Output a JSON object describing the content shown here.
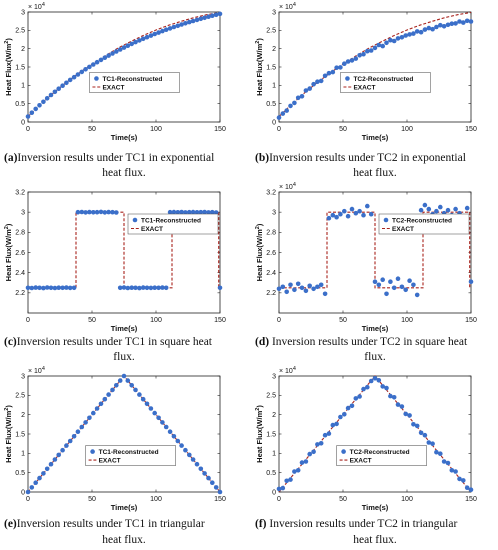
{
  "multiplier": {
    "base": "× 10",
    "exp": "4"
  },
  "chart_data": [
    {
      "id": "a",
      "type": "scatter+line",
      "xlabel": "Time(s)",
      "ylabel": "Heat Flux(W/m",
      "ylabel_sup": "2",
      "ylabel_end": ")",
      "xlim": [
        0,
        150
      ],
      "ylim": [
        0,
        30000
      ],
      "xticks": [
        "0",
        "50",
        "100",
        "150"
      ],
      "yticks": [
        "0",
        "0.5",
        "1",
        "1.5",
        "2",
        "2.5",
        "3"
      ],
      "ytick_values": [
        0,
        5000,
        10000,
        15000,
        20000,
        25000,
        30000
      ],
      "multiplier": true,
      "legend_loc": "center",
      "series": [
        {
          "name": "TC1-Reconstructed",
          "kind": "points",
          "x": [
            0,
            3,
            6,
            9,
            12,
            15,
            18,
            21,
            24,
            27,
            30,
            33,
            36,
            39,
            42,
            45,
            48,
            51,
            54,
            57,
            60,
            63,
            66,
            69,
            72,
            75,
            78,
            81,
            84,
            87,
            90,
            93,
            96,
            99,
            102,
            105,
            108,
            111,
            114,
            117,
            120,
            123,
            126,
            129,
            132,
            135,
            138,
            141,
            144,
            147,
            150
          ],
          "y": [
            1500,
            2550,
            3570,
            4560,
            5520,
            6450,
            7350,
            8230,
            9080,
            9900,
            10700,
            11470,
            12230,
            12960,
            13670,
            14360,
            15030,
            15690,
            16320,
            16940,
            17540,
            18120,
            18690,
            19240,
            19780,
            20300,
            20810,
            21300,
            21780,
            22250,
            22700,
            23140,
            23570,
            23990,
            24390,
            24790,
            25170,
            25540,
            25900,
            26250,
            26590,
            26920,
            27240,
            27550,
            27850,
            28150,
            28430,
            28710,
            28980,
            29240,
            29490
          ]
        },
        {
          "name": "EXACT",
          "kind": "dashed",
          "x": [
            0,
            10,
            20,
            30,
            40,
            50,
            60,
            70,
            80,
            90,
            100,
            110,
            120,
            130,
            140,
            150
          ],
          "y": [
            1500,
            4850,
            7950,
            10800,
            13400,
            15800,
            18000,
            20100,
            21900,
            23600,
            25100,
            26400,
            27500,
            28500,
            29300,
            29900
          ]
        }
      ]
    },
    {
      "id": "b",
      "type": "scatter+line",
      "xlabel": "Time(s)",
      "ylabel": "Heat Flux(W/m",
      "ylabel_sup": "2",
      "ylabel_end": ")",
      "xlim": [
        0,
        150
      ],
      "ylim": [
        0,
        30000
      ],
      "xticks": [
        "0",
        "50",
        "100",
        "150"
      ],
      "yticks": [
        "0",
        "0.5",
        "1",
        "1.5",
        "2",
        "2.5",
        "3"
      ],
      "ytick_values": [
        0,
        5000,
        10000,
        15000,
        20000,
        25000,
        30000
      ],
      "multiplier": true,
      "legend_loc": "center",
      "series": [
        {
          "name": "TC2-Reconstructed",
          "kind": "points",
          "x": [
            0,
            3,
            6,
            9,
            12,
            15,
            18,
            21,
            24,
            27,
            30,
            33,
            36,
            39,
            42,
            45,
            48,
            51,
            54,
            57,
            60,
            63,
            66,
            69,
            72,
            75,
            78,
            81,
            84,
            87,
            90,
            93,
            96,
            99,
            102,
            105,
            108,
            111,
            114,
            117,
            120,
            123,
            126,
            129,
            132,
            135,
            138,
            141,
            144,
            147,
            150
          ],
          "y": [
            1200,
            2300,
            3100,
            4400,
            5200,
            6600,
            7000,
            8600,
            9100,
            10300,
            11000,
            11200,
            12600,
            13300,
            13600,
            14800,
            14900,
            15900,
            16500,
            16800,
            17300,
            18200,
            18500,
            19300,
            19500,
            20200,
            21000,
            20700,
            21600,
            22300,
            22100,
            22800,
            23100,
            23600,
            23900,
            24100,
            24700,
            24500,
            25200,
            25600,
            25300,
            25900,
            26400,
            26100,
            26500,
            26800,
            26900,
            27400,
            27100,
            27600,
            27400
          ]
        },
        {
          "name": "EXACT",
          "kind": "dashed",
          "x": [
            0,
            10,
            20,
            30,
            40,
            50,
            60,
            70,
            80,
            90,
            100,
            110,
            120,
            130,
            140,
            150
          ],
          "y": [
            1500,
            4850,
            7950,
            10800,
            13400,
            15800,
            18000,
            20100,
            21900,
            23600,
            25100,
            26400,
            27500,
            28500,
            29300,
            29900
          ]
        }
      ]
    },
    {
      "id": "c",
      "type": "scatter+line",
      "xlabel": "Time(s)",
      "ylabel": "Heat Flux(W/m",
      "ylabel_sup": "2",
      "ylabel_end": ")",
      "xlim": [
        0,
        150
      ],
      "ylim": [
        20000,
        32000
      ],
      "xticks": [
        "0",
        "50",
        "100",
        "150"
      ],
      "yticks": [
        "2.2",
        "2.4",
        "2.6",
        "2.8",
        "3",
        "3.2"
      ],
      "ytick_values": [
        22000,
        24000,
        26000,
        28000,
        30000,
        32000
      ],
      "multiplier": false,
      "legend_loc": "top-right",
      "series": [
        {
          "name": "TC1-Reconstructed",
          "kind": "points",
          "x": [
            0,
            3,
            6,
            9,
            12,
            15,
            18,
            21,
            24,
            27,
            30,
            33,
            36,
            39,
            42,
            45,
            48,
            51,
            54,
            57,
            60,
            63,
            66,
            69,
            72,
            75,
            78,
            81,
            84,
            87,
            90,
            93,
            96,
            99,
            102,
            105,
            108,
            111,
            114,
            117,
            120,
            123,
            126,
            129,
            132,
            135,
            138,
            141,
            144,
            147,
            150
          ],
          "y": [
            22500,
            22480,
            22520,
            22500,
            22470,
            22530,
            22500,
            22480,
            22510,
            22500,
            22520,
            22490,
            22500,
            30000,
            30020,
            29980,
            30010,
            29990,
            30000,
            30030,
            29980,
            30010,
            30000,
            29970,
            22500,
            22530,
            22480,
            22510,
            22500,
            22470,
            22520,
            22500,
            22490,
            22510,
            22500,
            22520,
            22500,
            30000,
            30010,
            29990,
            30020,
            29980,
            30000,
            30010,
            29990,
            30000,
            30020,
            29980,
            30000,
            29970,
            22500
          ]
        },
        {
          "name": "EXACT",
          "kind": "dashed",
          "x": [
            0,
            37.5,
            37.5,
            75,
            75,
            112.5,
            112.5,
            149,
            149
          ],
          "y": [
            22500,
            22500,
            30000,
            30000,
            22500,
            22500,
            30000,
            30000,
            22500
          ]
        }
      ]
    },
    {
      "id": "d",
      "type": "scatter+line",
      "xlabel": "Time(s)",
      "ylabel": "Heat Flux(W/m",
      "ylabel_sup": "2",
      "ylabel_end": ")",
      "xlim": [
        0,
        150
      ],
      "ylim": [
        20000,
        32000
      ],
      "xticks": [
        "0",
        "50",
        "100",
        "150"
      ],
      "yticks": [
        "2.2",
        "2.4",
        "2.6",
        "2.8",
        "3",
        "3.2"
      ],
      "ytick_values": [
        22000,
        24000,
        26000,
        28000,
        30000,
        32000
      ],
      "multiplier": true,
      "legend_loc": "top-right",
      "series": [
        {
          "name": "TC2-Reconstructed",
          "kind": "points",
          "x": [
            0,
            3,
            6,
            9,
            12,
            15,
            18,
            21,
            24,
            27,
            30,
            33,
            36,
            39,
            42,
            45,
            48,
            51,
            54,
            57,
            60,
            63,
            66,
            69,
            72,
            75,
            78,
            81,
            84,
            87,
            90,
            93,
            96,
            99,
            102,
            105,
            108,
            111,
            114,
            117,
            120,
            123,
            126,
            129,
            132,
            135,
            138,
            141,
            144,
            147,
            150
          ],
          "y": [
            22400,
            22600,
            22100,
            22800,
            22300,
            22900,
            22500,
            22200,
            22700,
            22400,
            22600,
            22800,
            21900,
            29400,
            29700,
            29500,
            29800,
            30100,
            29600,
            30300,
            29900,
            30100,
            29700,
            30600,
            29800,
            23100,
            22800,
            23300,
            21900,
            23100,
            22500,
            23400,
            22600,
            22300,
            23200,
            22800,
            21800,
            30200,
            30700,
            30300,
            29800,
            30100,
            30500,
            29900,
            30200,
            29700,
            30300,
            29900,
            29600,
            30400,
            23100
          ]
        },
        {
          "name": "EXACT",
          "kind": "dashed",
          "x": [
            0,
            37.5,
            37.5,
            75,
            75,
            112.5,
            112.5,
            149,
            149
          ],
          "y": [
            22500,
            22500,
            30000,
            30000,
            22500,
            22500,
            30000,
            30000,
            22500
          ]
        }
      ]
    },
    {
      "id": "e",
      "type": "scatter+line",
      "xlabel": "Time(s)",
      "ylabel": "Heat Flux(W/m",
      "ylabel_sup": "2",
      "ylabel_end": ")",
      "xlim": [
        0,
        150
      ],
      "ylim": [
        0,
        30000
      ],
      "xticks": [
        "0",
        "50",
        "100",
        "150"
      ],
      "yticks": [
        "0",
        "0.5",
        "1",
        "1.5",
        "2",
        "2.5",
        "3"
      ],
      "ytick_values": [
        0,
        5000,
        10000,
        15000,
        20000,
        25000,
        30000
      ],
      "multiplier": true,
      "legend_loc": "bottom-center",
      "series": [
        {
          "name": "TC1-Reconstructed",
          "kind": "points",
          "x": [
            0,
            3,
            6,
            9,
            12,
            15,
            18,
            21,
            24,
            27,
            30,
            33,
            36,
            39,
            42,
            45,
            48,
            51,
            54,
            57,
            60,
            63,
            66,
            69,
            72,
            75,
            78,
            81,
            84,
            87,
            90,
            93,
            96,
            99,
            102,
            105,
            108,
            111,
            114,
            117,
            120,
            123,
            126,
            129,
            132,
            135,
            138,
            141,
            144,
            147,
            150
          ],
          "y": [
            0,
            1200,
            2400,
            3600,
            4800,
            6000,
            7200,
            8400,
            9600,
            10800,
            12000,
            13200,
            14400,
            15600,
            16800,
            18000,
            19200,
            20400,
            21600,
            22800,
            24000,
            25200,
            26400,
            27600,
            28800,
            30000,
            28800,
            27600,
            26400,
            25200,
            24000,
            22800,
            21600,
            20400,
            19200,
            18000,
            16800,
            15600,
            14400,
            13200,
            12000,
            10800,
            9600,
            8400,
            7200,
            6000,
            4800,
            3600,
            2400,
            1200,
            0
          ]
        },
        {
          "name": "EXACT",
          "kind": "dashed",
          "x": [
            0,
            75,
            150
          ],
          "y": [
            0,
            30000,
            0
          ]
        }
      ]
    },
    {
      "id": "f",
      "type": "scatter+line",
      "xlabel": "Time(s)",
      "ylabel": "Heat Flux(W/m",
      "ylabel_sup": "2",
      "ylabel_end": ")",
      "xlim": [
        0,
        150
      ],
      "ylim": [
        0,
        30000
      ],
      "xticks": [
        "0",
        "50",
        "100",
        "150"
      ],
      "yticks": [
        "0",
        "0.5",
        "1",
        "1.5",
        "2",
        "2.5",
        "3"
      ],
      "ytick_values": [
        0,
        5000,
        10000,
        15000,
        20000,
        25000,
        30000
      ],
      "multiplier": true,
      "legend_loc": "bottom-center",
      "series": [
        {
          "name": "TC2-Reconstructed",
          "kind": "points",
          "x": [
            0,
            3,
            6,
            9,
            12,
            15,
            18,
            21,
            24,
            27,
            30,
            33,
            36,
            39,
            42,
            45,
            48,
            51,
            54,
            57,
            60,
            63,
            66,
            69,
            72,
            75,
            78,
            81,
            84,
            87,
            90,
            93,
            96,
            99,
            102,
            105,
            108,
            111,
            114,
            117,
            120,
            123,
            126,
            129,
            132,
            135,
            138,
            141,
            144,
            147,
            150
          ],
          "y": [
            800,
            1000,
            2900,
            3200,
            5300,
            5600,
            7600,
            7900,
            9800,
            10400,
            12300,
            12600,
            14700,
            15100,
            17300,
            17600,
            19400,
            20100,
            21700,
            22300,
            24200,
            24700,
            26600,
            27100,
            28700,
            29400,
            28900,
            27300,
            26900,
            24800,
            24500,
            22600,
            22100,
            20200,
            19800,
            17500,
            17100,
            15300,
            14700,
            12800,
            12500,
            10300,
            9900,
            7900,
            7500,
            5600,
            5300,
            3400,
            3000,
            1100,
            600
          ]
        },
        {
          "name": "EXACT",
          "kind": "dashed",
          "x": [
            0,
            75,
            150
          ],
          "y": [
            0,
            30000,
            0
          ]
        }
      ]
    }
  ],
  "captions": {
    "a": {
      "label": "(a)",
      "text": "Inversion results under TC1 in exponential",
      "line2": "heat flux."
    },
    "b": {
      "label": "(b)",
      "text": "Inversion results under TC2 in exponential",
      "line2": "heat flux."
    },
    "c": {
      "label": "(c)",
      "text": "Inversion results under TC1 in square heat",
      "line2": "flux."
    },
    "d": {
      "label": "(d)",
      "text": " Inversion results under TC2 in square heat",
      "line2": "flux."
    },
    "e": {
      "label": "(e)",
      "text": "Inversion results under TC1 in triangular",
      "line2": "heat flux."
    },
    "f": {
      "label": "(f)",
      "text": " Inversion results under TC2 in triangular",
      "line2": "heat flux."
    }
  },
  "colors": {
    "points": "#3b6fc9",
    "exact": "#a8231d",
    "axis": "#222222"
  }
}
